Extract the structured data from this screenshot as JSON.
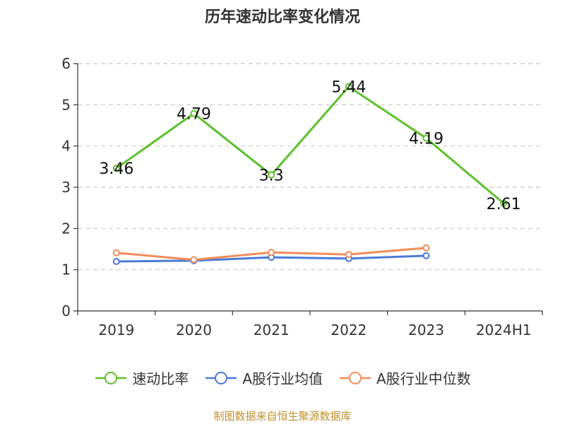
{
  "title": "历年速动比率变化情况",
  "footer": "制图数据来自恒生聚源数据库",
  "chart_data": {
    "type": "line",
    "categories": [
      "2019",
      "2020",
      "2021",
      "2022",
      "2023",
      "2024H1"
    ],
    "ylim": [
      0,
      6
    ],
    "yticks": [
      0,
      1,
      2,
      3,
      4,
      5,
      6
    ],
    "grid": true,
    "legend_position": "bottom",
    "series": [
      {
        "name": "速动比率",
        "color": "#5cc12b",
        "values": [
          3.46,
          4.79,
          3.3,
          5.44,
          4.19,
          2.61
        ],
        "labels": [
          "3.46",
          "4.79",
          "3.3",
          "5.44",
          "4.19",
          "2.61"
        ]
      },
      {
        "name": "A股行业均值",
        "color": "#4a7bd8",
        "values": [
          1.2,
          1.22,
          1.3,
          1.27,
          1.34,
          null
        ]
      },
      {
        "name": "A股行业中位数",
        "color": "#f28c5a",
        "values": [
          1.41,
          1.24,
          1.42,
          1.37,
          1.53,
          null
        ]
      }
    ]
  }
}
